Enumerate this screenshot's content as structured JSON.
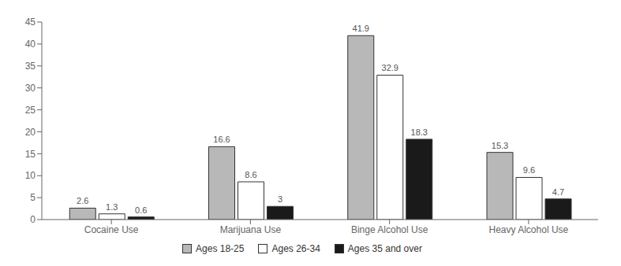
{
  "chart_data": {
    "type": "bar",
    "categories": [
      "Cocaine Use",
      "Marijuana Use",
      "Binge Alcohol Use",
      "Heavy Alcohol Use"
    ],
    "series": [
      {
        "name": "Ages 18-25",
        "color": "#b8b8b8",
        "values": [
          2.6,
          16.6,
          41.9,
          15.3
        ]
      },
      {
        "name": "Ages 26-34",
        "color": "#ffffff",
        "values": [
          1.3,
          8.6,
          32.9,
          9.6
        ]
      },
      {
        "name": "Ages 35 and over",
        "color": "#1a1a1a",
        "values": [
          0.6,
          3.0,
          18.3,
          4.7
        ]
      }
    ],
    "ylim": [
      0,
      45
    ],
    "yticks": [
      0,
      5,
      10,
      15,
      20,
      25,
      30,
      35,
      40,
      45
    ],
    "grid": false,
    "legend": "bottom",
    "data_labels": true
  }
}
